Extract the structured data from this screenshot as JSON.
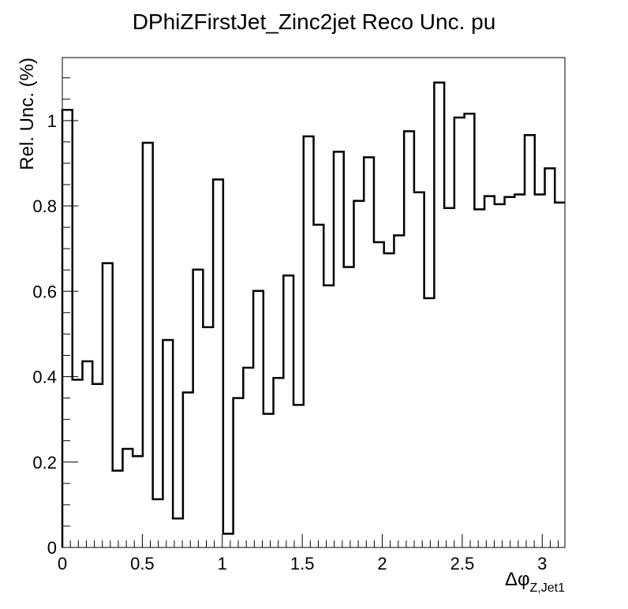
{
  "chart_data": {
    "type": "histogram-step",
    "title": "DPhiZFirstJet_Zinc2jet Reco Unc. pu",
    "xlabel_main": "Δφ",
    "xlabel_sub": "Z,Jet1",
    "ylabel": "Rel. Unc. (%)",
    "xlim": [
      0,
      3.1416
    ],
    "ylim": [
      0,
      1.1475
    ],
    "x_ticks": [
      "0",
      "0.5",
      "1",
      "1.5",
      "2",
      "2.5",
      "3"
    ],
    "x_tick_values": [
      0,
      0.5,
      1,
      1.5,
      2,
      2.5,
      3
    ],
    "y_ticks": [
      "0",
      "0.2",
      "0.4",
      "0.6",
      "0.8",
      "1"
    ],
    "y_tick_values": [
      0,
      0.2,
      0.4,
      0.6,
      0.8,
      1
    ],
    "bin_count": 50,
    "values": [
      1.025,
      0.393,
      0.436,
      0.383,
      0.666,
      0.18,
      0.231,
      0.214,
      0.948,
      0.113,
      0.486,
      0.068,
      0.363,
      0.651,
      0.516,
      0.862,
      0.032,
      0.35,
      0.421,
      0.601,
      0.313,
      0.397,
      0.637,
      0.334,
      0.963,
      0.756,
      0.614,
      0.927,
      0.657,
      0.812,
      0.914,
      0.715,
      0.689,
      0.731,
      0.975,
      0.832,
      0.584,
      1.089,
      0.795,
      1.007,
      1.016,
      0.792,
      0.823,
      0.804,
      0.821,
      0.827,
      0.966,
      0.827,
      0.888,
      0.808
    ],
    "line_color": "#000000",
    "grid": false,
    "legend": "none"
  }
}
